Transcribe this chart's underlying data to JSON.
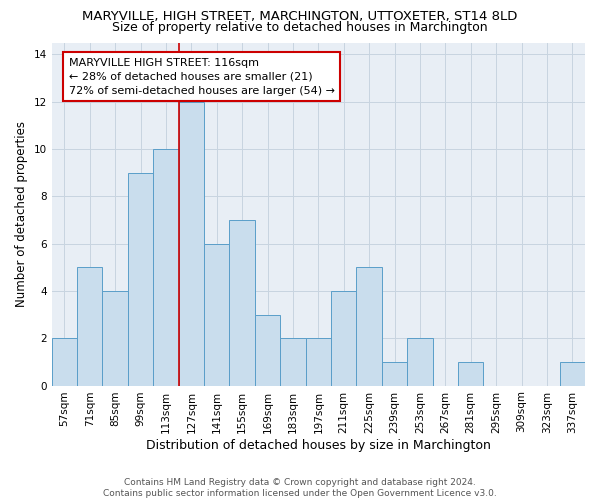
{
  "title": "MARYVILLE, HIGH STREET, MARCHINGTON, UTTOXETER, ST14 8LD",
  "subtitle": "Size of property relative to detached houses in Marchington",
  "xlabel": "Distribution of detached houses by size in Marchington",
  "ylabel": "Number of detached properties",
  "categories": [
    "57sqm",
    "71sqm",
    "85sqm",
    "99sqm",
    "113sqm",
    "127sqm",
    "141sqm",
    "155sqm",
    "169sqm",
    "183sqm",
    "197sqm",
    "211sqm",
    "225sqm",
    "239sqm",
    "253sqm",
    "267sqm",
    "281sqm",
    "295sqm",
    "309sqm",
    "323sqm",
    "337sqm"
  ],
  "values": [
    2,
    5,
    4,
    9,
    10,
    12,
    6,
    7,
    3,
    2,
    2,
    4,
    5,
    1,
    2,
    0,
    1,
    0,
    0,
    0,
    1
  ],
  "bar_color": "#c9dded",
  "bar_edge_color": "#5a9ec9",
  "bar_linewidth": 0.7,
  "vline_x": 4.5,
  "vline_color": "#cc0000",
  "vline_linewidth": 1.2,
  "annotation_text": "MARYVILLE HIGH STREET: 116sqm\n← 28% of detached houses are smaller (21)\n72% of semi-detached houses are larger (54) →",
  "ylim": [
    0,
    14.5
  ],
  "yticks": [
    0,
    2,
    4,
    6,
    8,
    10,
    12,
    14
  ],
  "grid_color": "#c8d4e0",
  "background_color": "#e8eef5",
  "footer": "Contains HM Land Registry data © Crown copyright and database right 2024.\nContains public sector information licensed under the Open Government Licence v3.0.",
  "title_fontsize": 9.5,
  "subtitle_fontsize": 9,
  "ylabel_fontsize": 8.5,
  "xlabel_fontsize": 9,
  "tick_fontsize": 7.5,
  "annotation_fontsize": 8,
  "footer_fontsize": 6.5
}
